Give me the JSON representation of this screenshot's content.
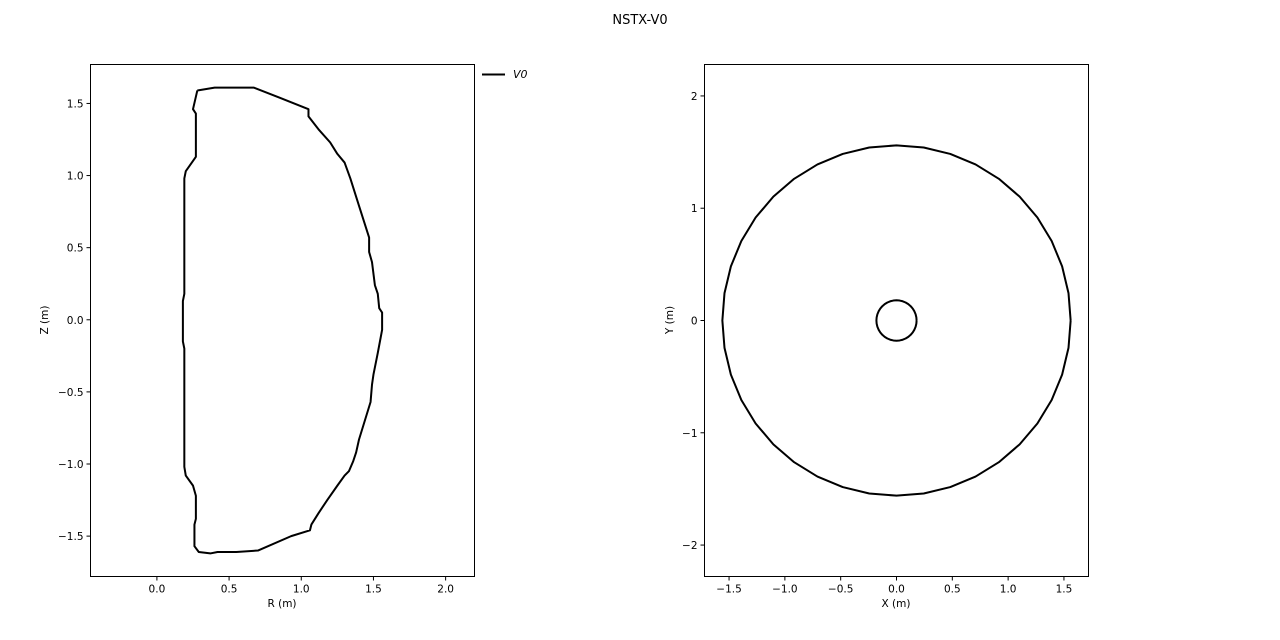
{
  "figure_title": "NSTX-V0",
  "chart_data": [
    {
      "type": "line",
      "xlabel": "R (m)",
      "ylabel": "Z (m)",
      "xlim": [
        -0.46,
        2.2
      ],
      "ylim": [
        -1.78,
        1.77
      ],
      "xticks": [
        0.0,
        0.5,
        1.0,
        1.5,
        2.0
      ],
      "xtick_labels": [
        "0.0",
        "0.5",
        "1.0",
        "1.5",
        "2.0"
      ],
      "yticks": [
        -1.5,
        -1.0,
        -0.5,
        0.0,
        0.5,
        1.0,
        1.5
      ],
      "ytick_labels": [
        "−1.5",
        "−1.0",
        "−0.5",
        "0.0",
        "0.5",
        "1.0",
        "1.5"
      ],
      "grid": false,
      "legend_position": "outside-top-right",
      "series": [
        {
          "name": "V0",
          "color": "#000000",
          "points": [
            [
              0.28,
              1.59
            ],
            [
              0.4,
              1.61
            ],
            [
              0.67,
              1.61
            ],
            [
              0.85,
              1.54
            ],
            [
              1.05,
              1.46
            ],
            [
              1.05,
              1.41
            ],
            [
              1.12,
              1.32
            ],
            [
              1.2,
              1.23
            ],
            [
              1.25,
              1.15
            ],
            [
              1.3,
              1.09
            ],
            [
              1.34,
              0.98
            ],
            [
              1.4,
              0.79
            ],
            [
              1.47,
              0.57
            ],
            [
              1.47,
              0.47
            ],
            [
              1.49,
              0.4
            ],
            [
              1.51,
              0.24
            ],
            [
              1.53,
              0.18
            ],
            [
              1.54,
              0.08
            ],
            [
              1.56,
              0.05
            ],
            [
              1.56,
              -0.07
            ],
            [
              1.53,
              -0.23
            ],
            [
              1.5,
              -0.38
            ],
            [
              1.49,
              -0.45
            ],
            [
              1.48,
              -0.57
            ],
            [
              1.44,
              -0.7
            ],
            [
              1.4,
              -0.83
            ],
            [
              1.38,
              -0.92
            ],
            [
              1.36,
              -0.98
            ],
            [
              1.33,
              -1.05
            ],
            [
              1.3,
              -1.08
            ],
            [
              1.25,
              -1.15
            ],
            [
              1.18,
              -1.25
            ],
            [
              1.12,
              -1.34
            ],
            [
              1.07,
              -1.42
            ],
            [
              1.06,
              -1.46
            ],
            [
              0.93,
              -1.5
            ],
            [
              0.7,
              -1.6
            ],
            [
              0.55,
              -1.61
            ],
            [
              0.42,
              -1.61
            ],
            [
              0.37,
              -1.62
            ],
            [
              0.29,
              -1.61
            ],
            [
              0.26,
              -1.57
            ],
            [
              0.26,
              -1.42
            ],
            [
              0.27,
              -1.38
            ],
            [
              0.27,
              -1.22
            ],
            [
              0.25,
              -1.15
            ],
            [
              0.2,
              -1.08
            ],
            [
              0.19,
              -1.02
            ],
            [
              0.19,
              -0.2
            ],
            [
              0.18,
              -0.15
            ],
            [
              0.18,
              0.0
            ],
            [
              0.18,
              0.13
            ],
            [
              0.19,
              0.18
            ],
            [
              0.19,
              0.98
            ],
            [
              0.2,
              1.03
            ],
            [
              0.27,
              1.13
            ],
            [
              0.27,
              1.43
            ],
            [
              0.25,
              1.46
            ],
            [
              0.28,
              1.59
            ]
          ]
        }
      ]
    },
    {
      "type": "line",
      "xlabel": "X (m)",
      "ylabel": "Y (m)",
      "xlim": [
        -1.72,
        1.72
      ],
      "ylim": [
        -2.28,
        2.28
      ],
      "xticks": [
        -1.5,
        -1.0,
        -0.5,
        0.0,
        0.5,
        1.0,
        1.5
      ],
      "xtick_labels": [
        "−1.5",
        "−1.0",
        "−0.5",
        "0.0",
        "0.5",
        "1.0",
        "1.5"
      ],
      "yticks": [
        -2,
        -1,
        0,
        1,
        2
      ],
      "ytick_labels": [
        "−2",
        "−1",
        "0",
        "1",
        "2"
      ],
      "grid": false,
      "circles": [
        {
          "center": [
            0.0,
            0.0
          ],
          "radius": 1.56,
          "color": "#000000"
        },
        {
          "center": [
            0.0,
            0.0
          ],
          "radius": 0.18,
          "color": "#000000"
        }
      ]
    }
  ]
}
